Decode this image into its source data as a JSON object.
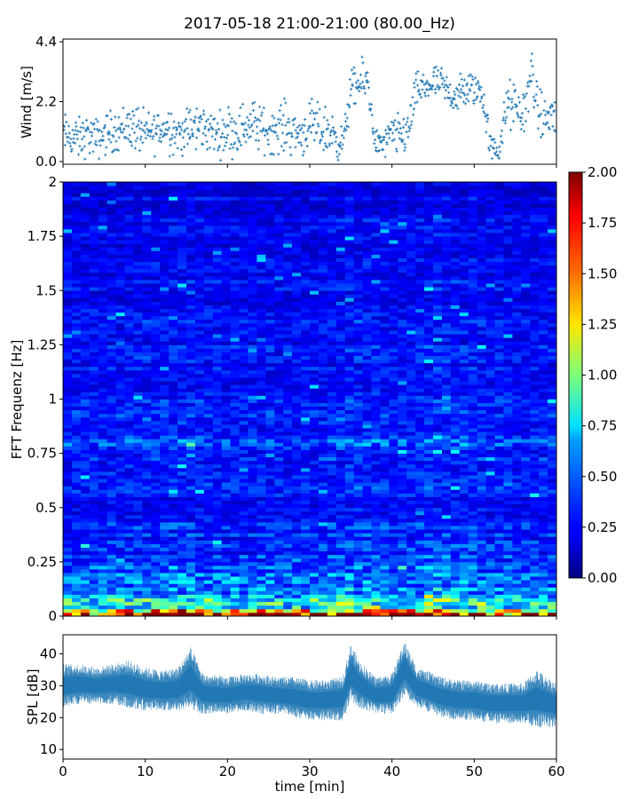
{
  "figure": {
    "title": "2017-05-18 21:00-21:00 (80.00_Hz)"
  },
  "chart_data": [
    {
      "type": "scatter",
      "panel": "wind",
      "ylabel": "Wind [m/s]",
      "xlim": [
        0,
        60
      ],
      "ylim": [
        -0.1,
        4.5
      ],
      "yticks": [
        0.0,
        2.2,
        4.4
      ],
      "ytick_labels": [
        "0.0",
        "2.2",
        "4.4"
      ],
      "marker": "+",
      "color": "#1f77b4",
      "x": [
        0,
        1,
        2,
        3,
        4,
        5,
        6,
        7,
        8,
        9,
        10,
        11,
        12,
        13,
        14,
        15,
        16,
        17,
        18,
        19,
        20,
        21,
        22,
        23,
        24,
        25,
        26,
        27,
        28,
        29,
        30,
        31,
        32,
        33,
        34,
        35,
        36,
        37,
        38,
        39,
        40,
        41,
        42,
        43,
        44,
        45,
        46,
        47,
        48,
        49,
        50,
        51,
        52,
        53,
        54,
        55,
        56,
        57,
        58,
        59,
        60
      ],
      "y": [
        1.0,
        0.9,
        0.8,
        1.0,
        0.8,
        1.0,
        1.1,
        1.2,
        1.3,
        1.2,
        1.0,
        1.1,
        1.2,
        1.3,
        1.0,
        1.1,
        1.2,
        1.3,
        1.1,
        1.0,
        1.2,
        1.1,
        1.3,
        1.4,
        1.2,
        1.1,
        1.2,
        1.3,
        1.1,
        1.0,
        1.3,
        1.2,
        1.1,
        1.0,
        0.6,
        2.6,
        2.8,
        3.0,
        0.7,
        0.6,
        1.0,
        0.9,
        1.2,
        2.6,
        2.7,
        2.9,
        2.8,
        2.5,
        2.4,
        2.6,
        2.7,
        2.5,
        0.5,
        0.4,
        2.1,
        2.0,
        1.7,
        3.3,
        1.5,
        1.7,
        1.6
      ],
      "y_spread": [
        0.6,
        0.6,
        0.6,
        0.6,
        0.6,
        0.6,
        0.6,
        0.6,
        0.7,
        0.7,
        0.6,
        0.6,
        0.7,
        0.7,
        0.6,
        0.7,
        0.7,
        0.7,
        0.6,
        0.6,
        0.7,
        0.7,
        0.7,
        0.7,
        0.7,
        0.6,
        0.7,
        0.7,
        0.7,
        0.6,
        0.7,
        0.7,
        0.7,
        0.7,
        0.4,
        0.6,
        0.6,
        0.6,
        0.4,
        0.4,
        0.6,
        0.6,
        0.7,
        0.5,
        0.5,
        0.5,
        0.5,
        0.5,
        0.6,
        0.6,
        0.5,
        0.6,
        0.4,
        0.4,
        0.7,
        0.7,
        0.7,
        0.8,
        0.7,
        0.8,
        0.8
      ]
    },
    {
      "type": "heatmap",
      "panel": "spectrogram",
      "ylabel": "FFT Frequenz [Hz]",
      "xlim": [
        0,
        60
      ],
      "ylim": [
        0,
        2
      ],
      "yticks": [
        0,
        0.25,
        0.5,
        0.75,
        1,
        1.25,
        1.5,
        1.75,
        2
      ],
      "ytick_labels": [
        "0",
        "0.25",
        "0.5",
        "0.75",
        "1",
        "1.25",
        "1.5",
        "1.75",
        "2"
      ],
      "colormap": "jet",
      "value_range": [
        0.0,
        2.0
      ],
      "colorbar": {
        "ticks": [
          0.0,
          0.25,
          0.5,
          0.75,
          1.0,
          1.25,
          1.5,
          1.75,
          2.0
        ],
        "tick_labels": [
          "0.00",
          "0.25",
          "0.50",
          "0.75",
          "1.00",
          "1.25",
          "1.50",
          "1.75",
          "2.00"
        ]
      },
      "frequency_profile": {
        "freq": [
          0.0,
          0.02,
          0.05,
          0.1,
          0.2,
          0.3,
          0.5,
          0.75,
          0.8,
          0.85,
          1.0,
          1.5,
          2.0
        ],
        "level": [
          1.6,
          1.1,
          0.75,
          0.55,
          0.4,
          0.32,
          0.28,
          0.3,
          0.42,
          0.3,
          0.26,
          0.24,
          0.2
        ]
      },
      "time_profile": {
        "time": [
          0,
          5,
          10,
          15,
          20,
          25,
          30,
          35,
          40,
          45,
          50,
          55,
          60
        ],
        "gain": [
          1.0,
          1.0,
          1.05,
          1.1,
          1.0,
          1.0,
          1.0,
          1.15,
          1.05,
          1.15,
          1.1,
          1.0,
          1.0
        ]
      }
    },
    {
      "type": "area",
      "panel": "spl",
      "ylabel": "SPL [dB]",
      "xlabel": "time [min]",
      "xlim": [
        0,
        60
      ],
      "ylim": [
        7,
        46
      ],
      "xticks": [
        0,
        10,
        20,
        30,
        40,
        50,
        60
      ],
      "xtick_labels": [
        "0",
        "10",
        "20",
        "30",
        "40",
        "50",
        "60"
      ],
      "yticks": [
        10,
        20,
        30,
        40
      ],
      "ytick_labels": [
        "10",
        "20",
        "30",
        "40"
      ],
      "color": "#1f77b4",
      "x": [
        0,
        2,
        4,
        6,
        8,
        10,
        12,
        14,
        15.5,
        17,
        20,
        22,
        24,
        26,
        28,
        30,
        32,
        34,
        35,
        36,
        38,
        40,
        41.5,
        43,
        46,
        48,
        50,
        52,
        54,
        56,
        57.5,
        60
      ],
      "low": [
        24,
        25,
        25,
        25,
        24,
        23,
        23,
        23,
        24,
        22,
        22,
        23,
        22,
        22,
        21,
        20,
        20,
        20,
        26,
        24,
        22,
        22,
        28,
        24,
        21,
        20,
        20,
        19,
        19,
        19,
        18,
        18
      ],
      "high": [
        36,
        36,
        35,
        36,
        37,
        35,
        34,
        35,
        41,
        33,
        32,
        33,
        33,
        32,
        32,
        31,
        31,
        32,
        42,
        37,
        32,
        33,
        43,
        35,
        32,
        31,
        31,
        30,
        30,
        30,
        34,
        30
      ]
    }
  ]
}
